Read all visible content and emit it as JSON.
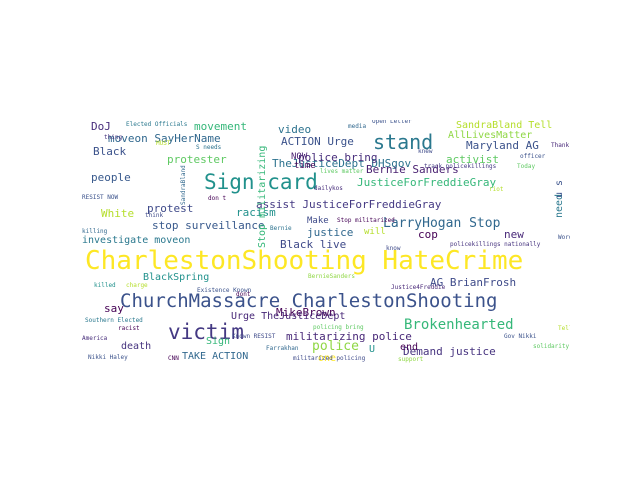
{
  "words": [
    {
      "text": "CharlestonShooting HateCrime",
      "color": "#fde725"
    },
    {
      "text": "ChurchMassacre CharlestonShooting",
      "color": "#3b528b"
    },
    {
      "text": "victim",
      "color": "#443983"
    },
    {
      "text": "Sign card",
      "color": "#21918c"
    },
    {
      "text": "stand",
      "color": "#2a788e"
    },
    {
      "text": "Brokenhearted",
      "color": "#35b779"
    },
    {
      "text": "LarryHogan Stop",
      "color": "#31688e"
    },
    {
      "text": "MikeBrown",
      "color": "#440154"
    },
    {
      "text": "AG BrianFrosh",
      "color": "#3e4a89"
    },
    {
      "text": "police",
      "color": "#8fd744"
    },
    {
      "text": "militarizing police",
      "color": "#482878"
    },
    {
      "text": "Demand justice",
      "color": "#46337f"
    },
    {
      "text": "Maryland AG",
      "color": "#3b528b"
    },
    {
      "text": "Bernie Sanders",
      "color": "#481f70"
    },
    {
      "text": "activist",
      "color": "#5ec962"
    },
    {
      "text": "JusticeForFreddieGray",
      "color": "#35b779"
    },
    {
      "text": "assist JusticeForFreddieGray",
      "color": "#443983"
    },
    {
      "text": "TheJusticeDept DHSgov",
      "color": "#2c728e"
    },
    {
      "text": "police bring",
      "color": "#472d7b"
    },
    {
      "text": "stop surveillance",
      "color": "#38598c"
    },
    {
      "text": "investigate moveon",
      "color": "#2a788e"
    },
    {
      "text": "Black live",
      "color": "#3e4989"
    },
    {
      "text": "justice",
      "color": "#31688e"
    },
    {
      "text": "cop",
      "color": "#440154"
    },
    {
      "text": "new",
      "color": "#482878"
    },
    {
      "text": "racism",
      "color": "#21918c"
    },
    {
      "text": "White",
      "color": "#b5de2b"
    },
    {
      "text": "people",
      "color": "#38598c"
    },
    {
      "text": "Black",
      "color": "#3b528b"
    },
    {
      "text": "moveon SayHerName",
      "color": "#31688e"
    },
    {
      "text": "DoJ",
      "color": "#472d7b"
    },
    {
      "text": "movement",
      "color": "#35b779"
    },
    {
      "text": "video",
      "color": "#2c728e"
    },
    {
      "text": "ACTION Urge",
      "color": "#3b528b"
    },
    {
      "text": "NOW",
      "color": "#481f70"
    },
    {
      "text": "time",
      "color": "#440154"
    },
    {
      "text": "Make",
      "color": "#3e4a89"
    },
    {
      "text": "will",
      "color": "#b5de2b"
    },
    {
      "text": "protester",
      "color": "#5ec962"
    },
    {
      "text": "protest",
      "color": "#3e4989"
    },
    {
      "text": "BlackSpring",
      "color": "#21918c"
    },
    {
      "text": "say",
      "color": "#440154"
    },
    {
      "text": "Urge TheJusticeDept",
      "color": "#482878"
    },
    {
      "text": "death",
      "color": "#46337f"
    },
    {
      "text": "Sign",
      "color": "#35b779"
    },
    {
      "text": "TAKE ACTION",
      "color": "#31688e"
    },
    {
      "text": "U",
      "color": "#21918c"
    },
    {
      "text": "end",
      "color": "#440154"
    },
    {
      "text": "one",
      "color": "#fde725"
    },
    {
      "text": "SandraBland Tell",
      "color": "#b5de2b"
    },
    {
      "text": "AllLivesMatter",
      "color": "#8fd744"
    },
    {
      "text": "need",
      "color": "#2a788e"
    },
    {
      "text": "u s",
      "color": "#3b528b"
    },
    {
      "text": "Stop militarizing",
      "color": "#35b779"
    },
    {
      "text": "Elected Officials",
      "color": "#2a788e"
    },
    {
      "text": "Open Letter",
      "color": "#3b528b"
    },
    {
      "text": "media",
      "color": "#31688e"
    },
    {
      "text": "Word",
      "color": "#3b528b"
    },
    {
      "text": "track policekillings",
      "color": "#443983"
    },
    {
      "text": "Today",
      "color": "#5ec962"
    },
    {
      "text": "lives matter",
      "color": "#5ec962"
    },
    {
      "text": "Stop militarized",
      "color": "#440154"
    },
    {
      "text": "dailykos",
      "color": "#472d7b"
    },
    {
      "text": "Bernie",
      "color": "#2c728e"
    },
    {
      "text": "policekillings nationally",
      "color": "#46337f"
    },
    {
      "text": "Existence Known",
      "color": "#3b528b"
    },
    {
      "text": "Justice4Freddie",
      "color": "#482878"
    },
    {
      "text": "BernieSanders",
      "color": "#8fd744"
    },
    {
      "text": "Southern Elected",
      "color": "#2a788e"
    },
    {
      "text": "Known RESIST",
      "color": "#3e4a89"
    },
    {
      "text": "Nikki Haley",
      "color": "#3b528b"
    },
    {
      "text": "CNN",
      "color": "#440154"
    },
    {
      "text": "Farrakhan",
      "color": "#31688e"
    },
    {
      "text": "militarized policing",
      "color": "#3e4a89"
    },
    {
      "text": "support",
      "color": "#8fd744"
    },
    {
      "text": "Gov Nikki",
      "color": "#3b528b"
    },
    {
      "text": "solidarity",
      "color": "#5ec962"
    },
    {
      "text": "RESIST NOW",
      "color": "#3b528b"
    },
    {
      "text": "killing",
      "color": "#31688e"
    },
    {
      "text": "killed",
      "color": "#21918c"
    },
    {
      "text": "charge",
      "color": "#b5de2b"
    },
    {
      "text": "racist",
      "color": "#440154"
    },
    {
      "text": "America",
      "color": "#472d7b"
    },
    {
      "text": "thing",
      "color": "#46337f"
    },
    {
      "text": "think",
      "color": "#3e4a89"
    },
    {
      "text": "dont",
      "color": "#440154"
    },
    {
      "text": "don t",
      "color": "#440154"
    },
    {
      "text": "S needs",
      "color": "#2c728e"
    },
    {
      "text": "officer",
      "color": "#3b528b"
    },
    {
      "text": "Thank",
      "color": "#482878"
    },
    {
      "text": "riot",
      "color": "#b5de2b"
    },
    {
      "text": "Tell",
      "color": "#b5de2b"
    },
    {
      "text": "knew",
      "color": "#3e4a89"
    },
    {
      "text": "SandraBland",
      "color": "#31688e"
    },
    {
      "text": "policing bring",
      "color": "#5ec962"
    },
    {
      "text": "MUST",
      "color": "#b5de2b"
    },
    {
      "text": "know",
      "color": "#3e4a89"
    }
  ]
}
